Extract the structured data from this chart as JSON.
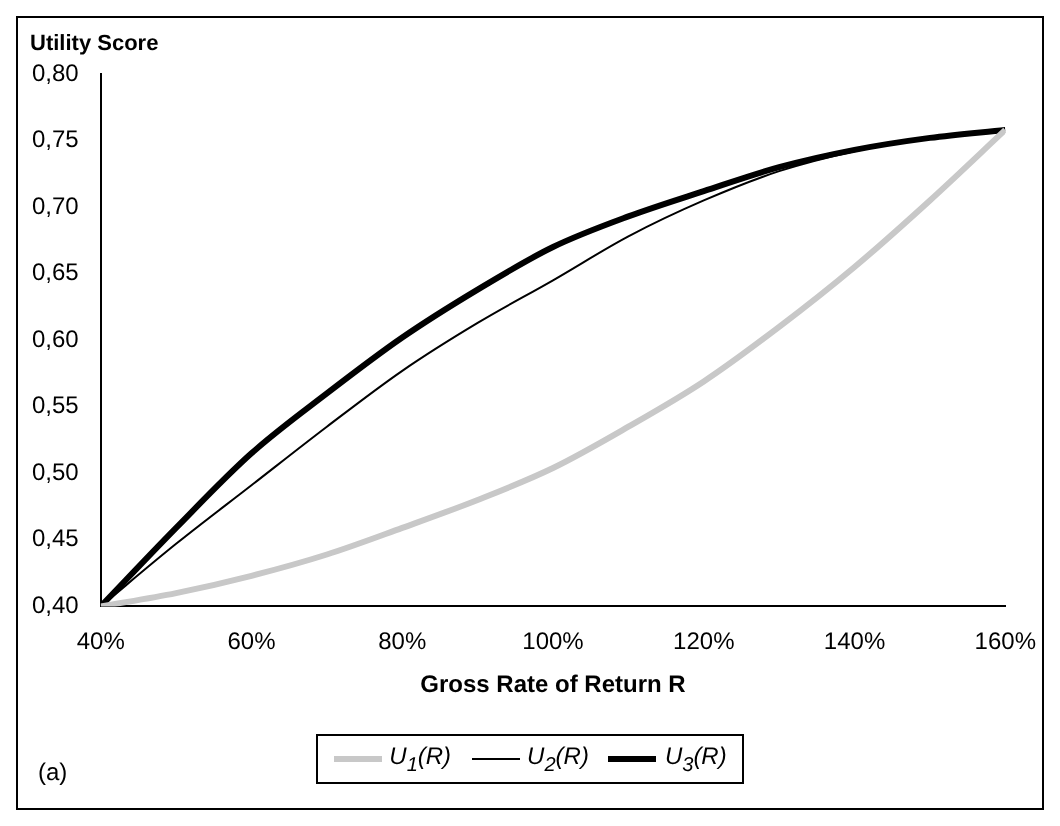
{
  "chart_data": {
    "type": "line",
    "ylabel": "Utility Score",
    "xlabel": "Gross Rate of Return R",
    "annotations": [
      "(a)"
    ],
    "x": [
      40,
      50,
      60,
      70,
      80,
      90,
      100,
      110,
      120,
      130,
      140,
      150,
      160
    ],
    "series": [
      {
        "name": "U$_{1}$(R)",
        "color": "#c8c8c8",
        "values": [
          0.4,
          0.41,
          0.423,
          0.439,
          0.459,
          0.48,
          0.504,
          0.535,
          0.569,
          0.61,
          0.655,
          0.705,
          0.758
        ]
      },
      {
        "name": "U$_{2}$(R)",
        "color": "#000000",
        "values": [
          0.4,
          0.447,
          0.491,
          0.535,
          0.577,
          0.613,
          0.645,
          0.678,
          0.705,
          0.727,
          0.742,
          0.752,
          0.758
        ]
      },
      {
        "name": "U$_{3}$(R)",
        "color": "#000000",
        "values": [
          0.4,
          0.459,
          0.515,
          0.56,
          0.602,
          0.638,
          0.67,
          0.693,
          0.712,
          0.73,
          0.743,
          0.752,
          0.758
        ]
      }
    ],
    "xlim": [
      40,
      160
    ],
    "xticks": [
      {
        "value": 40,
        "label": "40%"
      },
      {
        "value": 60,
        "label": "60%"
      },
      {
        "value": 80,
        "label": "80%"
      },
      {
        "value": 100,
        "label": "100%"
      },
      {
        "value": 120,
        "label": "120%"
      },
      {
        "value": 140,
        "label": "140%"
      },
      {
        "value": 160,
        "label": "160%"
      }
    ],
    "ylim": [
      0.4,
      0.8
    ],
    "yticks": [
      {
        "value": 0.4,
        "label": "0,40"
      },
      {
        "value": 0.45,
        "label": "0,45"
      },
      {
        "value": 0.5,
        "label": "0,50"
      },
      {
        "value": 0.55,
        "label": "0,55"
      },
      {
        "value": 0.6,
        "label": "0,60"
      },
      {
        "value": 0.65,
        "label": "0,65"
      },
      {
        "value": 0.7,
        "label": "0,70"
      },
      {
        "value": 0.75,
        "label": "0,75"
      },
      {
        "value": 0.8,
        "label": "0,80"
      }
    ],
    "grid": false,
    "legend": "bottom",
    "marker": "none",
    "line_style": "solid"
  }
}
